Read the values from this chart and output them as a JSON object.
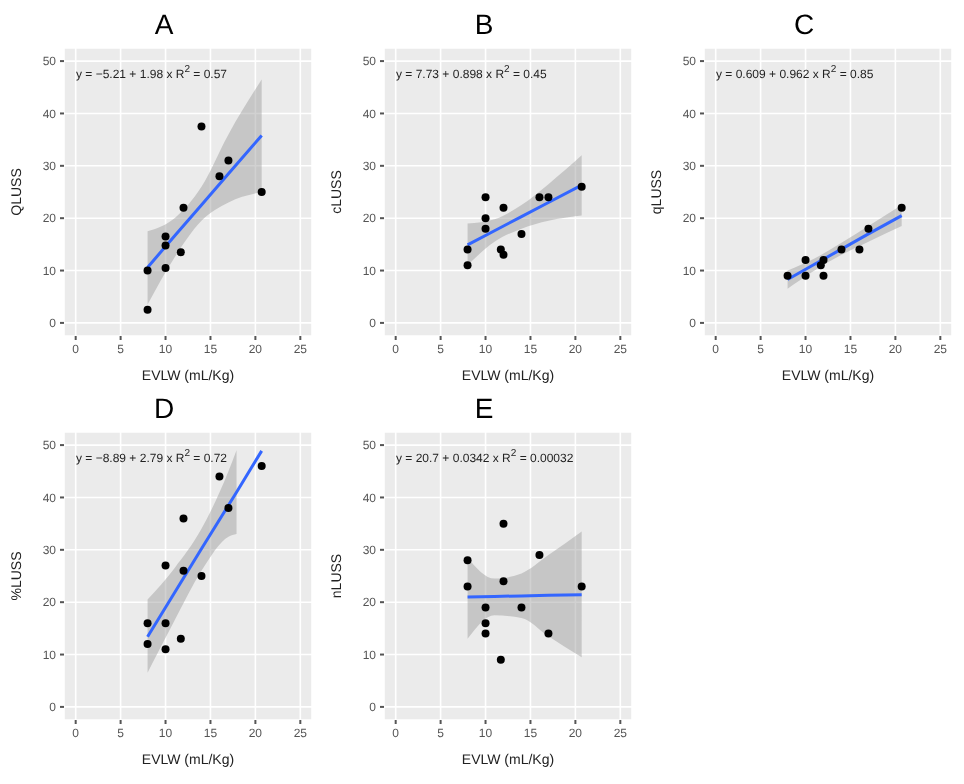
{
  "chart_data": [
    {
      "type": "scatter",
      "title": "A",
      "xlabel": "EVLW (mL/Kg)",
      "ylabel": "QLUSS",
      "xlim": [
        -1.3,
        26.3
      ],
      "ylim": [
        -2.5,
        52.5
      ],
      "xticks": [
        0,
        5,
        10,
        15,
        20,
        25
      ],
      "yticks": [
        0,
        10,
        20,
        30,
        40,
        50
      ],
      "grid": true,
      "annotations": [
        "y = −5.21 + 1.98 x   R$^{2}$ = 0.57"
      ],
      "series": [
        {
          "type": "scatter",
          "color": "#000000",
          "marker": "circle",
          "x": [
            8,
            8,
            10,
            10,
            10,
            11.7,
            12,
            14,
            16,
            17,
            20.7
          ],
          "values": [
            2.5,
            10,
            10.5,
            14.8,
            16.5,
            13.5,
            22,
            37.5,
            28,
            31,
            25
          ]
        },
        {
          "type": "line",
          "color": "#3366ff",
          "marker": "none",
          "x": [
            8,
            11,
            14,
            17,
            20.7
          ],
          "values": [
            10.6,
            16.6,
            22.5,
            28.5,
            35.8
          ],
          "lower": [
            3.5,
            12.5,
            19.5,
            23,
            25
          ],
          "upper": [
            17.5,
            20,
            26,
            36,
            46.5
          ]
        }
      ]
    },
    {
      "type": "scatter",
      "title": "B",
      "xlabel": "EVLW (mL/Kg)",
      "ylabel": "cLUSS",
      "xlim": [
        -1.3,
        26.3
      ],
      "ylim": [
        -2.5,
        52.5
      ],
      "xticks": [
        0,
        5,
        10,
        15,
        20,
        25
      ],
      "yticks": [
        0,
        10,
        20,
        30,
        40,
        50
      ],
      "grid": true,
      "annotations": [
        "y = 7.73 + 0.898 x   R$^{2}$ = 0.45"
      ],
      "series": [
        {
          "type": "scatter",
          "color": "#000000",
          "marker": "circle",
          "x": [
            8,
            8,
            10,
            10,
            10,
            11.7,
            12,
            12,
            14,
            16,
            17,
            20.7
          ],
          "values": [
            14,
            11,
            24,
            20,
            18,
            14,
            22,
            13,
            17,
            24,
            24,
            26
          ]
        },
        {
          "type": "line",
          "color": "#3366ff",
          "marker": "none",
          "x": [
            8,
            11,
            14,
            17,
            20.7
          ],
          "values": [
            14.9,
            17.6,
            20.3,
            23,
            26.3
          ],
          "lower": [
            11,
            15.5,
            18,
            19.5,
            20.5
          ],
          "upper": [
            19,
            19.8,
            22.5,
            26.5,
            32
          ]
        }
      ]
    },
    {
      "type": "scatter",
      "title": "C",
      "xlabel": "EVLW (mL/Kg)",
      "ylabel": "qLUSS",
      "xlim": [
        -1.3,
        26.3
      ],
      "ylim": [
        -2.5,
        52.5
      ],
      "xticks": [
        0,
        5,
        10,
        15,
        20,
        25
      ],
      "yticks": [
        0,
        10,
        20,
        30,
        40,
        50
      ],
      "grid": true,
      "annotations": [
        "y = 0.609 + 0.962 x   R$^{2}$ = 0.85"
      ],
      "series": [
        {
          "type": "scatter",
          "color": "#000000",
          "marker": "circle",
          "x": [
            8,
            10,
            10,
            11.7,
            12,
            12,
            14,
            16,
            17,
            20.7
          ],
          "values": [
            9,
            12,
            9,
            11,
            12,
            9,
            14,
            14,
            18,
            22
          ]
        },
        {
          "type": "line",
          "color": "#3366ff",
          "marker": "none",
          "x": [
            8,
            11,
            14,
            17,
            20.7
          ],
          "values": [
            8.3,
            11.2,
            14.1,
            17,
            20.5
          ],
          "lower": [
            6.5,
            10,
            13,
            15.5,
            18.5
          ],
          "upper": [
            10,
            12.3,
            15.3,
            18.5,
            22.5
          ]
        }
      ]
    },
    {
      "type": "scatter",
      "title": "D",
      "xlabel": "EVLW (mL/Kg)",
      "ylabel": "%LUSS",
      "xlim": [
        -1.3,
        26.3
      ],
      "ylim": [
        -2.5,
        52.5
      ],
      "xticks": [
        0,
        5,
        10,
        15,
        20,
        25
      ],
      "yticks": [
        0,
        10,
        20,
        30,
        40,
        50
      ],
      "grid": true,
      "annotations": [
        "y = −8.89 + 2.79 x   R$^{2}$ = 0.72"
      ],
      "series": [
        {
          "type": "scatter",
          "color": "#000000",
          "marker": "circle",
          "x": [
            8,
            8,
            10,
            10,
            10,
            11.7,
            12,
            12,
            14,
            16,
            17,
            20.7
          ],
          "values": [
            16,
            12,
            27,
            16,
            11,
            13,
            36,
            26,
            25,
            44,
            38,
            46
          ]
        },
        {
          "type": "line",
          "color": "#3366ff",
          "marker": "none",
          "x": [
            8,
            11,
            14,
            17,
            17.9,
            20.7
          ],
          "values": [
            13.4,
            21.8,
            30.2,
            38.5,
            41,
            48.9
          ],
          "lower": [
            6.5,
            16.5,
            26,
            32.5,
            33,
            null
          ],
          "upper": [
            20.5,
            26.5,
            34,
            45,
            49,
            null
          ]
        }
      ]
    },
    {
      "type": "scatter",
      "title": "E",
      "xlabel": "EVLW (mL/Kg)",
      "ylabel": "nLUSS",
      "xlim": [
        -1.3,
        26.3
      ],
      "ylim": [
        -2.5,
        52.5
      ],
      "xticks": [
        0,
        5,
        10,
        15,
        20,
        25
      ],
      "yticks": [
        0,
        10,
        20,
        30,
        40,
        50
      ],
      "grid": true,
      "annotations": [
        "y = 20.7 + 0.0342 x   R$^{2}$ = 0.00032"
      ],
      "series": [
        {
          "type": "scatter",
          "color": "#000000",
          "marker": "circle",
          "x": [
            8,
            8,
            10,
            10,
            10,
            11.7,
            12,
            12,
            14,
            16,
            17,
            20.7
          ],
          "values": [
            28,
            23,
            19,
            16,
            14,
            9,
            35,
            24,
            19,
            29,
            14,
            23
          ]
        },
        {
          "type": "line",
          "color": "#3366ff",
          "marker": "none",
          "x": [
            8,
            11,
            14,
            17,
            20.7
          ],
          "values": [
            21,
            21.1,
            21.2,
            21.3,
            21.4
          ],
          "lower": [
            13,
            17.5,
            17,
            13.5,
            9.5
          ],
          "upper": [
            28.5,
            24.5,
            25.5,
            29,
            33.5
          ]
        }
      ]
    }
  ]
}
